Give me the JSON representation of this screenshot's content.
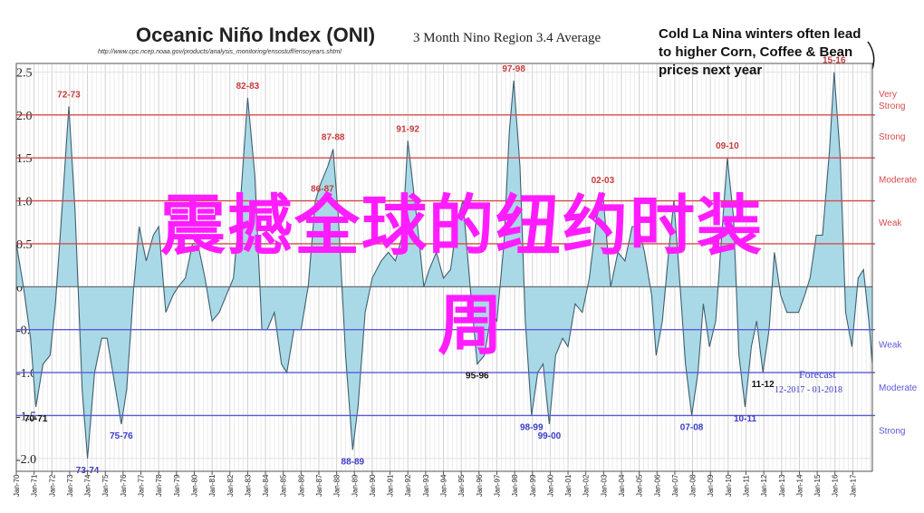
{
  "chart_data": {
    "type": "area",
    "title": "Oceanic Niño Index (ONI)",
    "subtitle": "3 Month Nino Region 3.4 Average",
    "source_url": "http://www.cpc.ncep.noaa.gov/products/analysis_monitoring/ensostuff/ensoyears.shtml",
    "ylim": [
      -2.15,
      2.6
    ],
    "y_ticks": [
      {
        "v": 2.5,
        "label": "2.5"
      },
      {
        "v": 2.0,
        "label": "2.0"
      },
      {
        "v": 1.5,
        "label": "1.5"
      },
      {
        "v": 1.0,
        "label": "1.0"
      },
      {
        "v": 0.5,
        "label": "0.5"
      },
      {
        "v": 0.0,
        "label": "0"
      },
      {
        "v": -0.5,
        "label": "-0.5"
      },
      {
        "v": -1.0,
        "label": "-1.0"
      },
      {
        "v": -1.5,
        "label": "-1.5"
      },
      {
        "v": -2.0,
        "label": "-2.0"
      }
    ],
    "x_ticks": [
      "Jan-70",
      "Jan-71",
      "Jan-72",
      "Jan-73",
      "Jan-74",
      "Jan-75",
      "Jan-76",
      "Jan-77",
      "Jan-78",
      "Jan-79",
      "Jan-80",
      "Jan-81",
      "Jan-82",
      "Jan-83",
      "Jan-84",
      "Jan-85",
      "Jan-86",
      "Jan-87",
      "Jan-88",
      "Jan-89",
      "Jan-90",
      "Jan-91",
      "Jan-92",
      "Jan-93",
      "Jan-94",
      "Jan-95",
      "Jan-96",
      "Jan-97",
      "Jan-98",
      "Jan-99",
      "Jan-00",
      "Jan-01",
      "Jan-02",
      "Jan-03",
      "Jan-04",
      "Jan-05",
      "Jan-06",
      "Jan-07",
      "Jan-08",
      "Jan-09",
      "Jan-10",
      "Jan-11",
      "Jan-12",
      "Jan-13",
      "Jan-14",
      "Jan-15",
      "Jan-16",
      "Jan-17"
    ],
    "x_start_year": 1970,
    "x_end_year": 2018.1,
    "thresholds": [
      {
        "v": 2.0,
        "color": "#d64b4b",
        "label": "Very Strong"
      },
      {
        "v": 1.5,
        "color": "#d64b4b",
        "label": "Strong"
      },
      {
        "v": 1.0,
        "color": "#d64b4b",
        "label": "Moderate"
      },
      {
        "v": 0.5,
        "color": "#d64b4b",
        "label": "Weak"
      },
      {
        "v": -0.5,
        "color": "#5a5adb",
        "label": "Weak"
      },
      {
        "v": -1.0,
        "color": "#5a5adb",
        "label": "Moderate"
      },
      {
        "v": -1.5,
        "color": "#5a5adb",
        "label": "Strong"
      }
    ],
    "series": [
      {
        "fill": "#a9d9e6",
        "stroke": "#3f5f6f",
        "points": [
          [
            1970.0,
            0.5
          ],
          [
            1970.4,
            0.0
          ],
          [
            1970.8,
            -0.6
          ],
          [
            1971.1,
            -1.4
          ],
          [
            1971.5,
            -0.9
          ],
          [
            1971.9,
            -0.8
          ],
          [
            1972.2,
            -0.2
          ],
          [
            1972.6,
            1.0
          ],
          [
            1972.95,
            2.1
          ],
          [
            1973.3,
            0.9
          ],
          [
            1973.7,
            -1.2
          ],
          [
            1974.0,
            -2.0
          ],
          [
            1974.4,
            -1.0
          ],
          [
            1974.8,
            -0.6
          ],
          [
            1975.1,
            -0.6
          ],
          [
            1975.5,
            -1.1
          ],
          [
            1975.9,
            -1.6
          ],
          [
            1976.2,
            -1.2
          ],
          [
            1976.6,
            0.0
          ],
          [
            1976.9,
            0.7
          ],
          [
            1977.3,
            0.3
          ],
          [
            1977.7,
            0.6
          ],
          [
            1978.0,
            0.7
          ],
          [
            1978.4,
            -0.3
          ],
          [
            1978.8,
            -0.1
          ],
          [
            1979.1,
            0.0
          ],
          [
            1979.5,
            0.1
          ],
          [
            1979.9,
            0.5
          ],
          [
            1980.2,
            0.5
          ],
          [
            1980.6,
            0.1
          ],
          [
            1981.0,
            -0.4
          ],
          [
            1981.4,
            -0.3
          ],
          [
            1981.8,
            -0.1
          ],
          [
            1982.2,
            0.1
          ],
          [
            1982.6,
            1.0
          ],
          [
            1983.0,
            2.2
          ],
          [
            1983.4,
            1.3
          ],
          [
            1983.8,
            -0.5
          ],
          [
            1984.1,
            -0.5
          ],
          [
            1984.5,
            -0.3
          ],
          [
            1984.9,
            -0.9
          ],
          [
            1985.2,
            -1.0
          ],
          [
            1985.6,
            -0.5
          ],
          [
            1986.0,
            -0.5
          ],
          [
            1986.4,
            0.0
          ],
          [
            1986.8,
            1.0
          ],
          [
            1987.1,
            1.2
          ],
          [
            1987.5,
            1.4
          ],
          [
            1987.8,
            1.6
          ],
          [
            1988.1,
            0.8
          ],
          [
            1988.5,
            -0.8
          ],
          [
            1988.9,
            -1.9
          ],
          [
            1989.2,
            -1.4
          ],
          [
            1989.6,
            -0.3
          ],
          [
            1990.0,
            0.1
          ],
          [
            1990.5,
            0.3
          ],
          [
            1990.9,
            0.4
          ],
          [
            1991.3,
            0.3
          ],
          [
            1991.7,
            0.6
          ],
          [
            1992.0,
            1.7
          ],
          [
            1992.5,
            0.8
          ],
          [
            1992.9,
            0.0
          ],
          [
            1993.2,
            0.2
          ],
          [
            1993.6,
            0.4
          ],
          [
            1994.0,
            0.1
          ],
          [
            1994.4,
            0.2
          ],
          [
            1994.8,
            0.8
          ],
          [
            1995.1,
            1.0
          ],
          [
            1995.5,
            0.0
          ],
          [
            1995.9,
            -0.9
          ],
          [
            1996.3,
            -0.8
          ],
          [
            1996.7,
            -0.3
          ],
          [
            1997.0,
            -0.4
          ],
          [
            1997.4,
            0.5
          ],
          [
            1997.7,
            1.8
          ],
          [
            1997.95,
            2.4
          ],
          [
            1998.3,
            1.4
          ],
          [
            1998.6,
            -0.4
          ],
          [
            1998.95,
            -1.5
          ],
          [
            1999.3,
            -1.0
          ],
          [
            1999.6,
            -0.9
          ],
          [
            1999.95,
            -1.6
          ],
          [
            2000.3,
            -0.8
          ],
          [
            2000.7,
            -0.6
          ],
          [
            2001.0,
            -0.7
          ],
          [
            2001.4,
            -0.2
          ],
          [
            2001.8,
            -0.3
          ],
          [
            2002.2,
            0.1
          ],
          [
            2002.6,
            0.8
          ],
          [
            2002.95,
            1.1
          ],
          [
            2003.4,
            0.0
          ],
          [
            2003.8,
            0.4
          ],
          [
            2004.2,
            0.3
          ],
          [
            2004.6,
            0.7
          ],
          [
            2004.95,
            0.7
          ],
          [
            2005.3,
            0.4
          ],
          [
            2005.7,
            -0.1
          ],
          [
            2005.95,
            -0.8
          ],
          [
            2006.3,
            -0.4
          ],
          [
            2006.7,
            0.5
          ],
          [
            2006.95,
            1.0
          ],
          [
            2007.3,
            0.0
          ],
          [
            2007.6,
            -0.9
          ],
          [
            2007.95,
            -1.5
          ],
          [
            2008.3,
            -1.0
          ],
          [
            2008.6,
            -0.2
          ],
          [
            2008.95,
            -0.7
          ],
          [
            2009.3,
            -0.4
          ],
          [
            2009.6,
            0.5
          ],
          [
            2009.95,
            1.5
          ],
          [
            2010.3,
            0.8
          ],
          [
            2010.6,
            -0.8
          ],
          [
            2010.95,
            -1.4
          ],
          [
            2011.3,
            -0.7
          ],
          [
            2011.6,
            -0.4
          ],
          [
            2011.95,
            -1.0
          ],
          [
            2012.3,
            -0.5
          ],
          [
            2012.6,
            0.4
          ],
          [
            2012.95,
            -0.1
          ],
          [
            2013.3,
            -0.3
          ],
          [
            2013.6,
            -0.3
          ],
          [
            2013.95,
            -0.3
          ],
          [
            2014.3,
            -0.1
          ],
          [
            2014.6,
            0.1
          ],
          [
            2014.95,
            0.6
          ],
          [
            2015.3,
            0.6
          ],
          [
            2015.7,
            1.6
          ],
          [
            2015.95,
            2.5
          ],
          [
            2016.3,
            1.5
          ],
          [
            2016.6,
            -0.3
          ],
          [
            2016.95,
            -0.7
          ],
          [
            2017.3,
            0.1
          ],
          [
            2017.6,
            0.2
          ],
          [
            2017.9,
            -0.4
          ],
          [
            2018.1,
            -0.9
          ]
        ]
      }
    ],
    "annotations_red": [
      {
        "x": 1972.95,
        "v": 2.1,
        "label": "72-73"
      },
      {
        "x": 1983.0,
        "v": 2.2,
        "label": "82-83"
      },
      {
        "x": 1987.2,
        "v": 1.0,
        "label": "86-87"
      },
      {
        "x": 1987.8,
        "v": 1.6,
        "label": "87-88"
      },
      {
        "x": 1992.0,
        "v": 1.7,
        "label": "91-92"
      },
      {
        "x": 1997.95,
        "v": 2.4,
        "label": "97-98"
      },
      {
        "x": 2002.95,
        "v": 1.1,
        "label": "02-03"
      },
      {
        "x": 2009.95,
        "v": 1.5,
        "label": "09-10"
      },
      {
        "x": 2015.95,
        "v": 2.5,
        "label": "15-16"
      }
    ],
    "annotations_low": [
      {
        "x": 1971.1,
        "v": -1.4,
        "label": "70-71",
        "color": "#111111"
      },
      {
        "x": 1974.0,
        "v": -2.0,
        "label": "73-74",
        "color": "#3b3bc8"
      },
      {
        "x": 1975.9,
        "v": -1.6,
        "label": "75-76",
        "color": "#3b3bc8"
      },
      {
        "x": 1988.9,
        "v": -1.9,
        "label": "88-89",
        "color": "#3b3bc8"
      },
      {
        "x": 1995.9,
        "v": -0.9,
        "label": "95-96",
        "color": "#111111"
      },
      {
        "x": 1998.95,
        "v": -1.5,
        "label": "98-99",
        "color": "#3b3bc8"
      },
      {
        "x": 1999.95,
        "v": -1.6,
        "label": "99-00",
        "color": "#3b3bc8"
      },
      {
        "x": 2007.95,
        "v": -1.5,
        "label": "07-08",
        "color": "#3b3bc8"
      },
      {
        "x": 2010.95,
        "v": -1.4,
        "label": "10-11",
        "color": "#3b3bc8"
      },
      {
        "x": 2011.95,
        "v": -1.0,
        "label": "11-12",
        "color": "#111111"
      }
    ],
    "forecast": {
      "label": "Forecast",
      "range": "12-2017 - 01-2018"
    },
    "callout": "Cold La Nina winters often lead to higher Corn, Coffee & Bean prices next year"
  },
  "overlay": {
    "line1": "震撼全球的纽约时装",
    "line2": "周"
  },
  "colors": {
    "grid": "#dcdcdc",
    "axis": "#555555",
    "overlay_text": "#ff1dff"
  }
}
